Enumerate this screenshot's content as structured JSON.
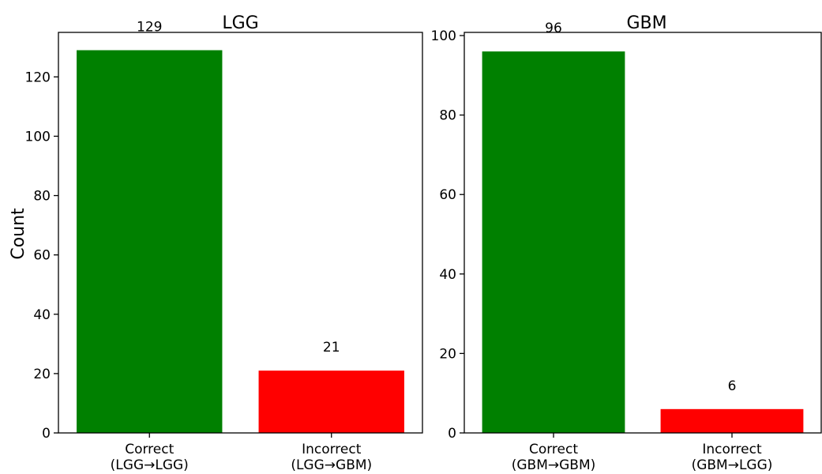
{
  "chart_data": [
    {
      "type": "bar",
      "title": "LGG",
      "ylabel": "Count",
      "xlabel": "",
      "ylim": [
        0,
        135
      ],
      "yticks": [
        0,
        20,
        40,
        60,
        80,
        100,
        120
      ],
      "grid": false,
      "categories": [
        [
          "Correct",
          "(LGG→LGG)"
        ],
        [
          "Incorrect",
          "(LGG→GBM)"
        ]
      ],
      "values": [
        129,
        21
      ],
      "labels": [
        "129",
        "21"
      ],
      "colors": [
        "#008000",
        "#ff0000"
      ]
    },
    {
      "type": "bar",
      "title": "GBM",
      "ylabel": "",
      "xlabel": "",
      "ylim": [
        0,
        100.8
      ],
      "yticks": [
        0,
        20,
        40,
        60,
        80,
        100
      ],
      "grid": false,
      "categories": [
        [
          "Correct",
          "(GBM→GBM)"
        ],
        [
          "Incorrect",
          "(GBM→LGG)"
        ]
      ],
      "values": [
        96,
        6
      ],
      "labels": [
        "96",
        "6"
      ],
      "colors": [
        "#008000",
        "#ff0000"
      ]
    }
  ]
}
